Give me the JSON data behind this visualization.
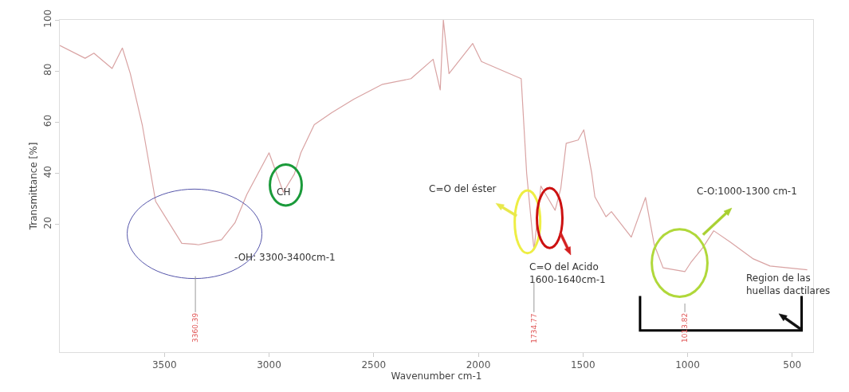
{
  "chart_data": {
    "type": "line",
    "xlabel": "Wavenumber cm-1",
    "ylabel": "Transmittance [%]",
    "xlim": [
      4000,
      400
    ],
    "xticks": [
      3500,
      3000,
      2500,
      2000,
      1500,
      1000,
      500
    ],
    "ylim": [
      -30,
      100
    ],
    "yticks": [
      20,
      40,
      60,
      80,
      100
    ],
    "marker": "none",
    "line_style": "solid",
    "series": [
      {
        "color": "#d9a3a3",
        "x": [
          4000,
          3879,
          3837,
          3750,
          3701,
          3663,
          3606,
          3542,
          3417,
          3352,
          3337,
          3227,
          3163,
          3106,
          3000,
          2958,
          2932,
          2879,
          2848,
          2784,
          2701,
          2595,
          2458,
          2322,
          2216,
          2182,
          2167,
          2140,
          2027,
          1985,
          1795,
          1769,
          1734,
          1701,
          1633,
          1606,
          1580,
          1523,
          1496,
          1458,
          1443,
          1390,
          1364,
          1269,
          1201,
          1159,
          1117,
          1013,
          985,
          928,
          875,
          795,
          686,
          606,
          428
        ],
        "values": [
          90,
          85,
          87,
          81,
          89,
          79,
          59,
          29,
          12.6,
          12.2,
          12,
          14,
          20.6,
          31.7,
          48,
          38.5,
          32.6,
          39.7,
          48,
          59,
          63.7,
          69,
          74.8,
          77,
          84.6,
          72.6,
          100,
          79,
          90.8,
          83.7,
          77,
          40,
          10,
          35,
          25.5,
          34,
          51.7,
          53,
          57,
          40,
          30.8,
          23,
          25,
          15,
          30.5,
          12,
          3,
          1.5,
          5,
          10.8,
          17.5,
          13,
          6.5,
          3.7,
          2.2
        ]
      }
    ],
    "annotations": [
      {
        "text": "CH",
        "x": 2932,
        "y": 32.6
      },
      "-OH: 3300-3400cm-1",
      "C=O del éster",
      "C=O del Acido\n1600-1640cm-1",
      "C-O:1000-1300 cm-1",
      "Region de las\nhuellas dactilares",
      {
        "text": "3360.39",
        "x": 3352,
        "y": 12.2
      },
      {
        "text": "1734.77",
        "x": 1734,
        "y": 10
      },
      {
        "text": "1013.82",
        "x": 1013,
        "y": 1.5
      }
    ]
  }
}
